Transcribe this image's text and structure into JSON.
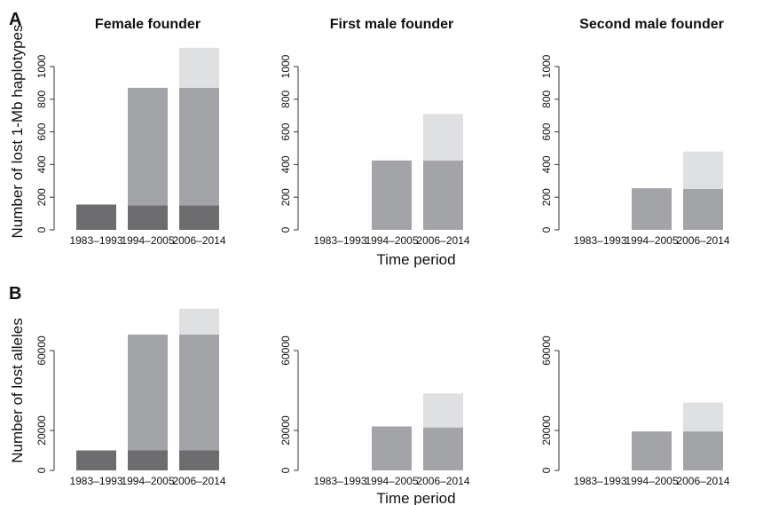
{
  "chart_data": [
    {
      "id": "A",
      "type": "bar",
      "stacked": true,
      "panel_letter": "A",
      "ylabel": "Number of lost 1-Mb haplotypes",
      "xlabel": "",
      "ylim": [
        0,
        1000
      ],
      "yticks": [
        0,
        200,
        400,
        600,
        800,
        1000
      ],
      "yticklabels": [
        "0",
        "200",
        "400",
        "600",
        "800",
        "1000"
      ],
      "panels": [
        {
          "title": "Female founder",
          "categories": [
            "1983–1993",
            "1994–2005",
            "2006–2014"
          ],
          "segments": [
            [
              155,
              0,
              0
            ],
            [
              150,
              720,
              0
            ],
            [
              150,
              720,
              245
            ]
          ],
          "colors": [
            "#6d6d70",
            "#a3a4a7",
            "#dfe0e2"
          ]
        },
        {
          "title": "First male founder",
          "categories": [
            "1983–1993",
            "1994–2005",
            "2006–2014"
          ],
          "segments": [
            [
              0,
              0,
              0
            ],
            [
              0,
              425,
              0
            ],
            [
              0,
              425,
              285
            ]
          ],
          "colors": [
            "#6d6d70",
            "#a3a4a7",
            "#dfe0e2"
          ]
        },
        {
          "title": "Second male founder",
          "categories": [
            "1983–1993",
            "1994–2005",
            "2006–2014"
          ],
          "segments": [
            [
              0,
              0,
              0
            ],
            [
              0,
              255,
              0
            ],
            [
              0,
              250,
              230
            ]
          ],
          "colors": [
            "#6d6d70",
            "#a3a4a7",
            "#dfe0e2"
          ]
        }
      ],
      "shared_xlabel": "Time period"
    },
    {
      "id": "B",
      "type": "bar",
      "stacked": true,
      "panel_letter": "B",
      "ylabel": "Number of lost alleles",
      "xlabel": "",
      "ylim": [
        0,
        80000
      ],
      "yticks": [
        0,
        20000,
        60000
      ],
      "yticklabels": [
        "0",
        "20000",
        "60000"
      ],
      "panels": [
        {
          "title": "",
          "categories": [
            "1983–1993",
            "1994–2005",
            "2006–2014"
          ],
          "segments": [
            [
              10000,
              0,
              0
            ],
            [
              10000,
              58000,
              0
            ],
            [
              10000,
              58000,
              13000
            ]
          ],
          "colors": [
            "#6d6d70",
            "#a3a4a7",
            "#dfe0e2"
          ]
        },
        {
          "title": "",
          "categories": [
            "1983–1993",
            "1994–2005",
            "2006–2014"
          ],
          "segments": [
            [
              0,
              0,
              0
            ],
            [
              0,
              22000,
              0
            ],
            [
              0,
              21500,
              17000
            ]
          ],
          "colors": [
            "#6d6d70",
            "#a3a4a7",
            "#dfe0e2"
          ]
        },
        {
          "title": "",
          "categories": [
            "1983–1993",
            "1994–2005",
            "2006–2014"
          ],
          "segments": [
            [
              0,
              0,
              0
            ],
            [
              0,
              19500,
              0
            ],
            [
              0,
              19500,
              14500
            ]
          ],
          "colors": [
            "#6d6d70",
            "#a3a4a7",
            "#dfe0e2"
          ]
        }
      ],
      "shared_xlabel": "Time period"
    }
  ]
}
